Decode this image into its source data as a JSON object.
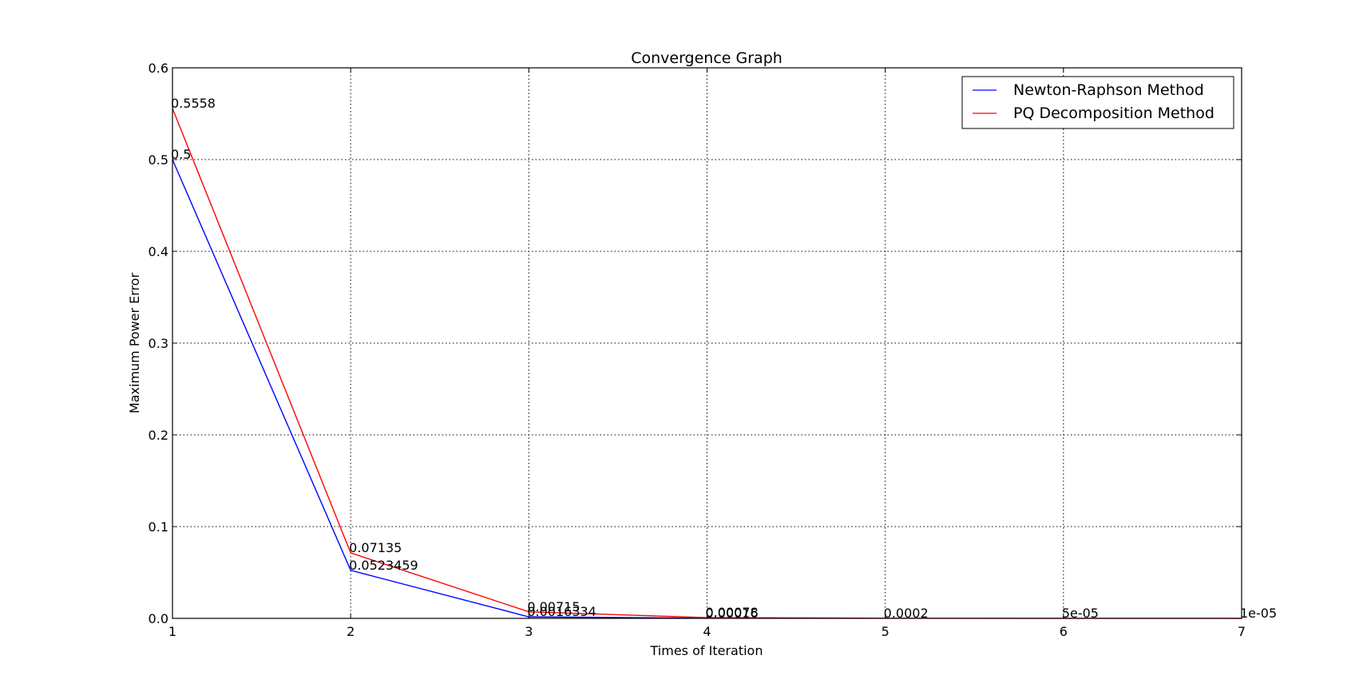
{
  "chart_data": {
    "type": "line",
    "title": "Convergence Graph",
    "xlabel": "Times of Iteration",
    "ylabel": "Maximum Power Error",
    "xlim": [
      1,
      7
    ],
    "ylim": [
      0,
      0.6
    ],
    "xticks": [
      "1",
      "2",
      "3",
      "4",
      "5",
      "6",
      "7"
    ],
    "yticks": [
      "0.0",
      "0.1",
      "0.2",
      "0.3",
      "0.4",
      "0.5",
      "0.6"
    ],
    "grid": true,
    "legend_position": "top-right",
    "series": [
      {
        "name": "Newton-Raphson Method",
        "color": "#0000ff",
        "x": [
          1,
          2,
          3,
          4
        ],
        "y": [
          0.5,
          0.0523459,
          0.0016334,
          0.00016
        ],
        "labels": [
          "0.5",
          "0.0523459",
          "0.0016334",
          "0.00016"
        ]
      },
      {
        "name": "PQ Decomposition Method",
        "color": "#ff0000",
        "x": [
          1,
          2,
          3,
          4,
          5,
          6,
          7
        ],
        "y": [
          0.5558,
          0.07135,
          0.00715,
          0.00078,
          0.0002,
          5e-05,
          1e-05
        ],
        "labels": [
          "0.5558",
          "0.07135",
          "0.00715",
          "0.00078",
          "0.0002",
          "5e-05",
          "1e-05"
        ]
      }
    ]
  }
}
